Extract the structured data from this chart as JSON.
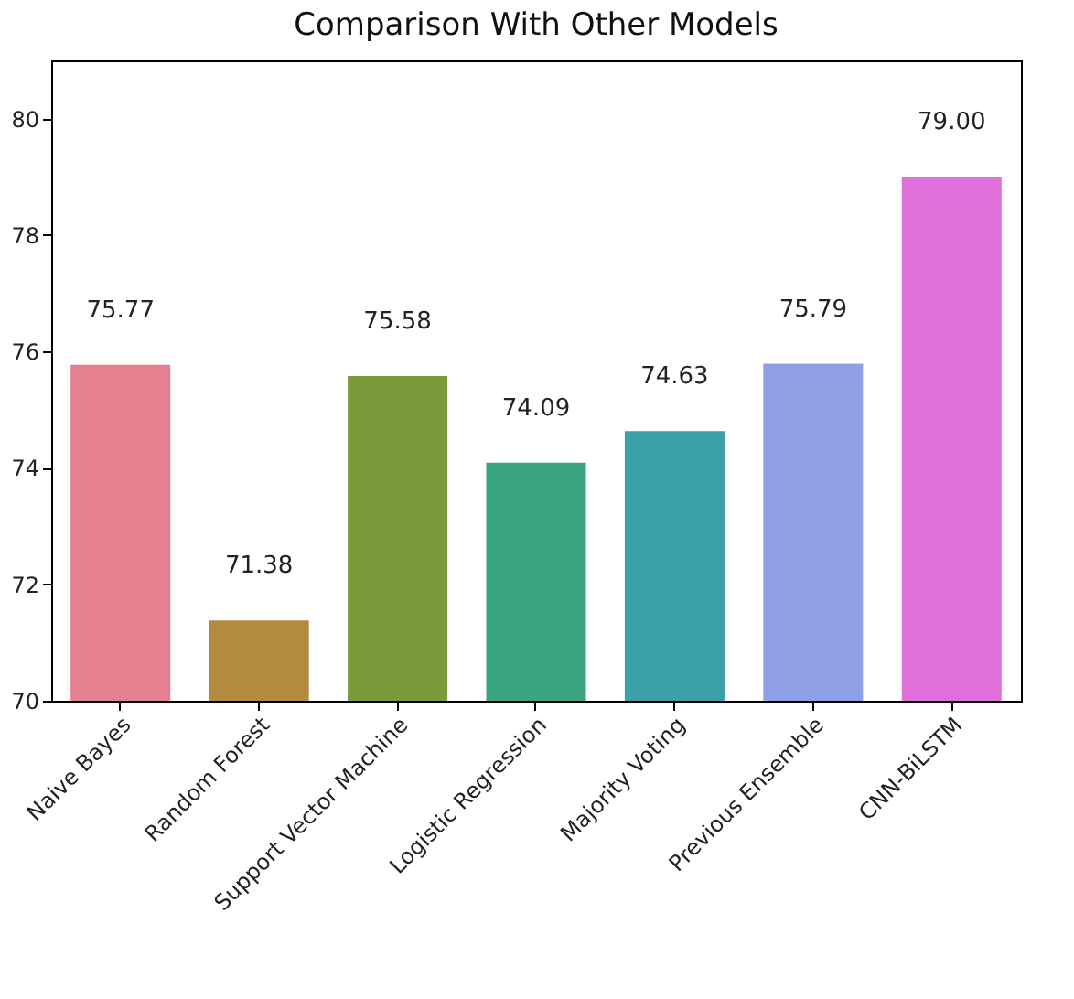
{
  "chart_data": {
    "type": "bar",
    "title": "Comparison With Other Models",
    "categories": [
      "Naive Bayes",
      "Random Forest",
      "Support Vector Machine",
      "Logistic Regression",
      "Majority Voting",
      "Previous Ensemble",
      "CNN-BiLSTM"
    ],
    "values": [
      75.77,
      71.38,
      75.58,
      74.09,
      74.63,
      75.79,
      79.0
    ],
    "value_labels": [
      "75.77",
      "71.38",
      "75.58",
      "74.09",
      "74.63",
      "75.79",
      "79.00"
    ],
    "colors": [
      "#e5808e",
      "#b38a3f",
      "#7a9a3c",
      "#3ba582",
      "#3ba1a8",
      "#8e9fe6",
      "#df6fdb"
    ],
    "ylim": [
      70,
      81
    ],
    "yticks": [
      70,
      72,
      74,
      76,
      78,
      80
    ],
    "grid": false
  }
}
